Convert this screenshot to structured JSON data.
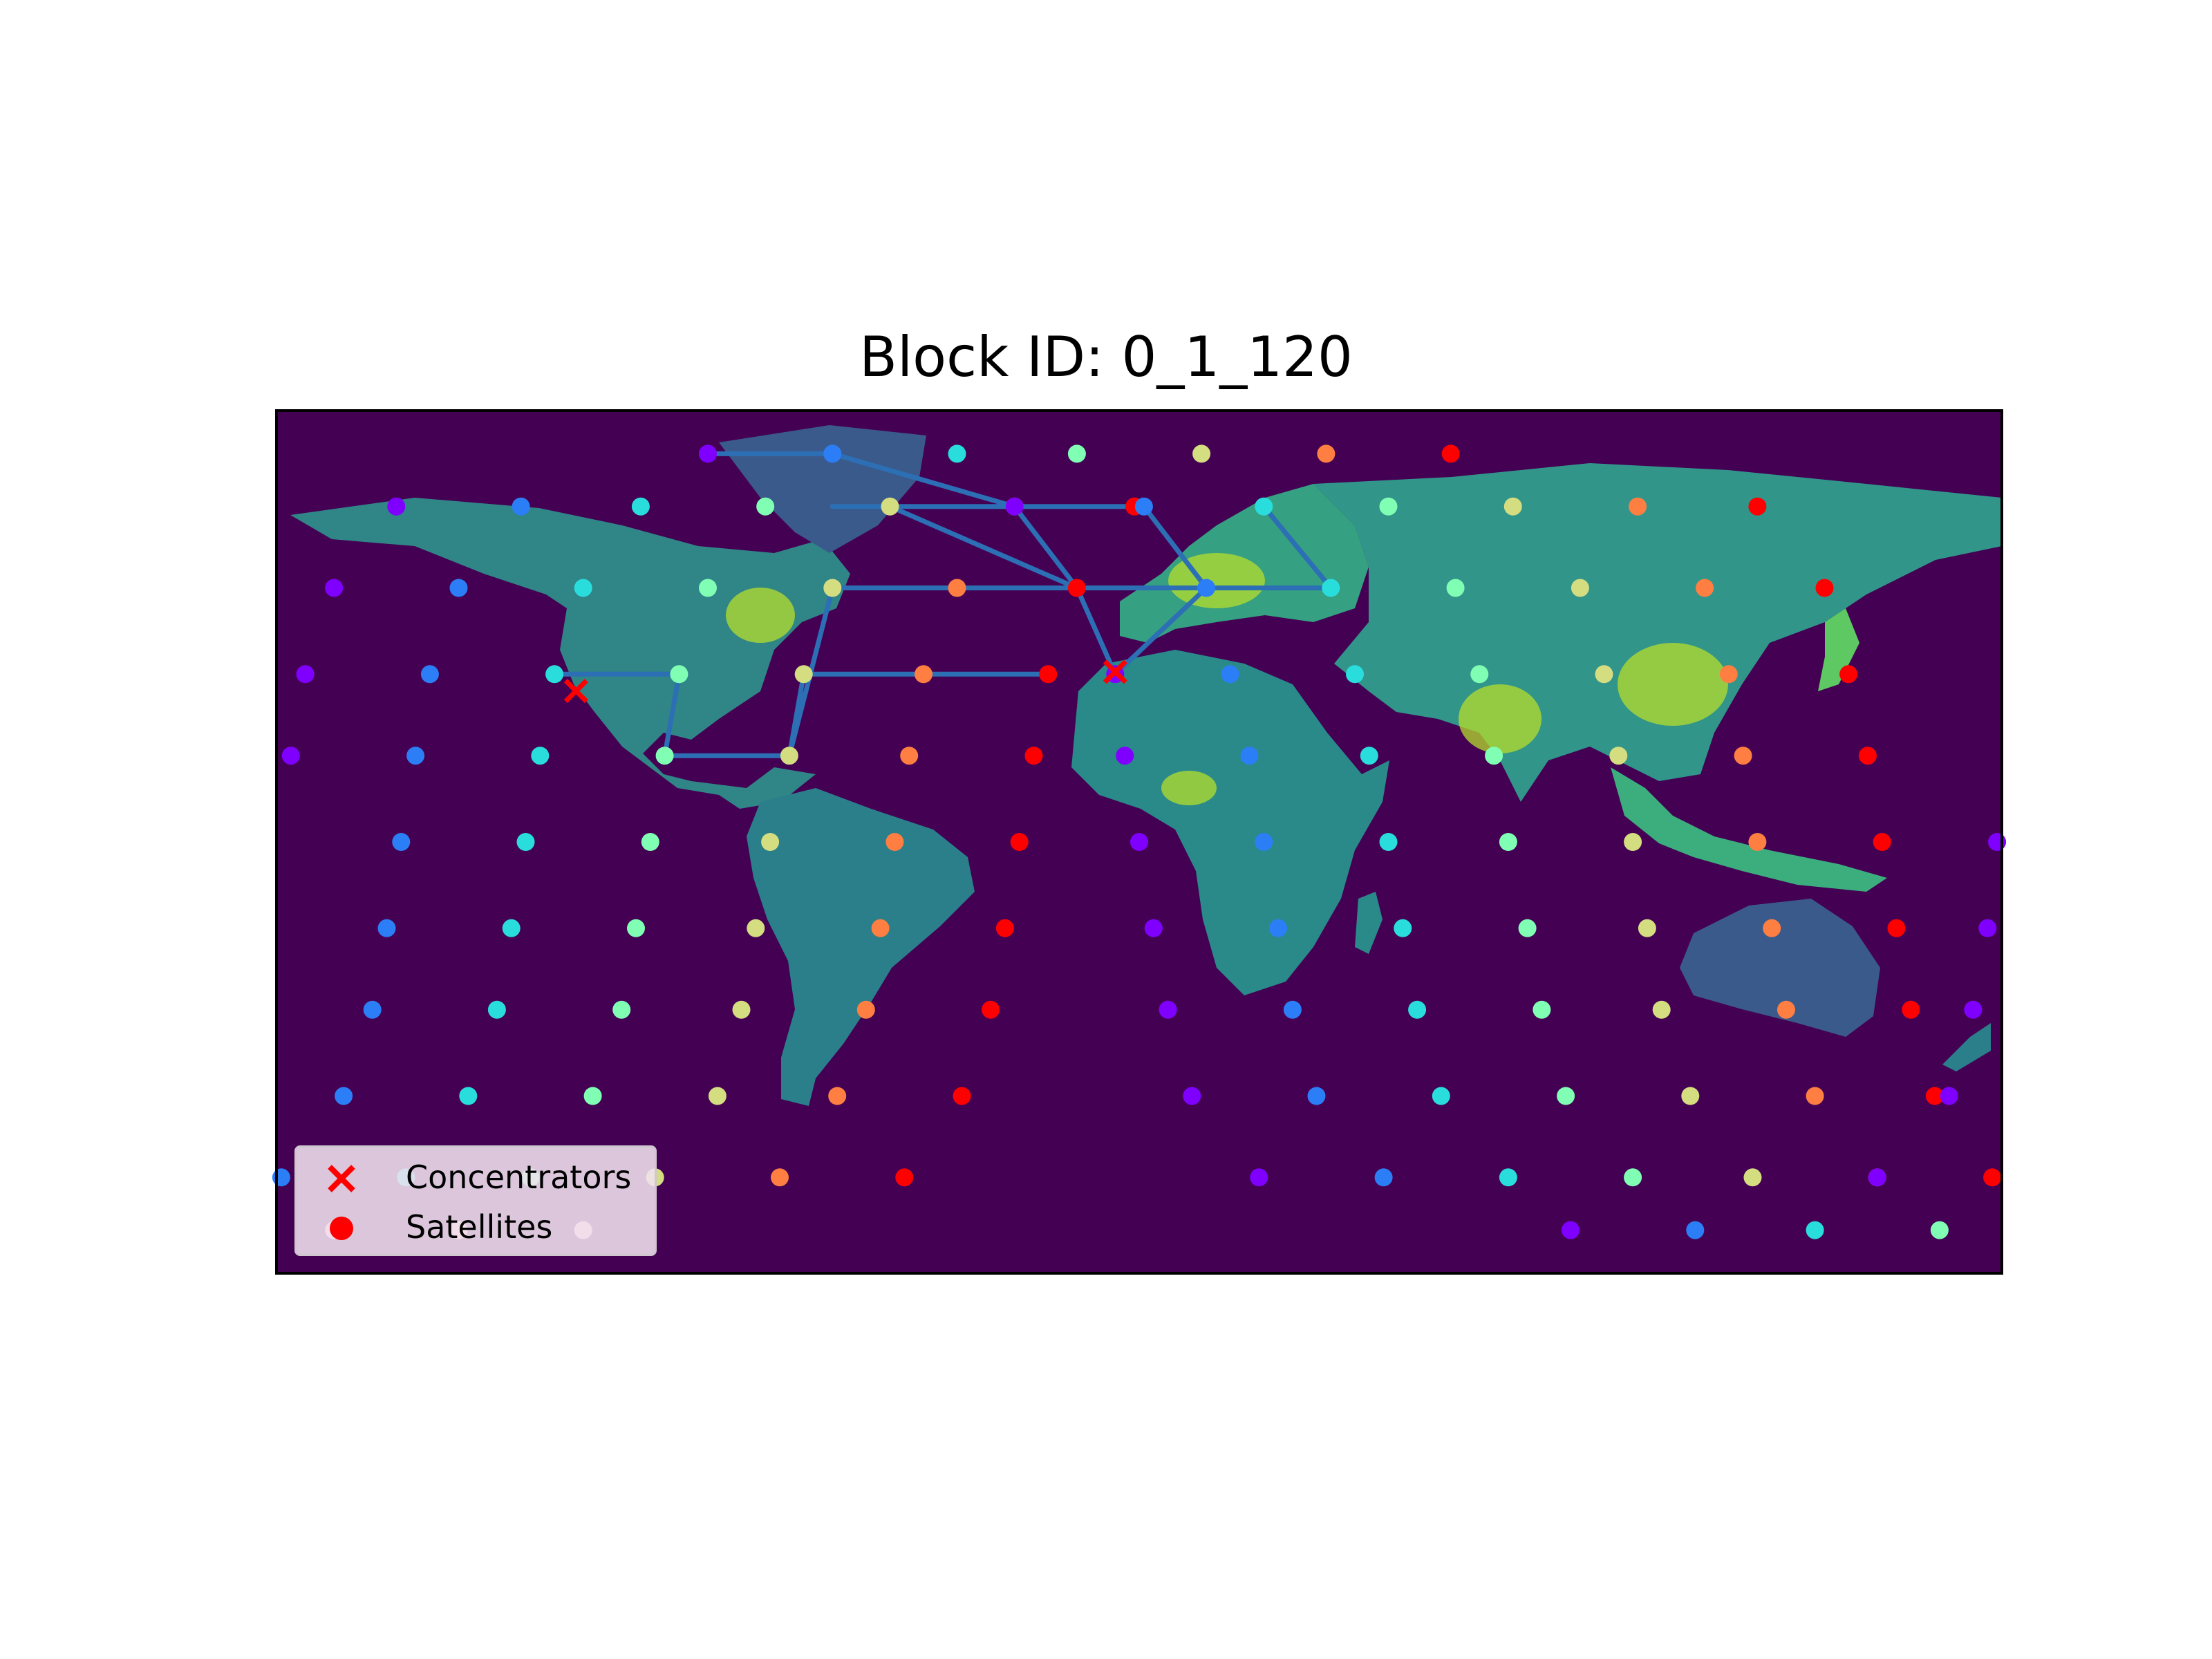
{
  "title": "Block ID: 0_1_120",
  "legend": {
    "concentrators_label": "Concentrators",
    "satellites_label": "Satellites",
    "concentrator_color": "#ff0000",
    "satellite_color": "#ff0000"
  },
  "colors": {
    "ocean": "#440154",
    "land_low": "#2a788e",
    "land_high": "#b5de2b",
    "route": "#2c6fb5",
    "frame": "#000000"
  },
  "chart_data": {
    "type": "scatter",
    "map": "world population density (equirectangular)",
    "xlim": [
      -180,
      180
    ],
    "ylim": [
      -90,
      90
    ],
    "grid": false,
    "legend_position": "lower-left",
    "series": [
      {
        "name": "Concentrators",
        "marker": "x",
        "color": "#ff0000",
        "points": [
          [
            -117.5,
            31.5
          ],
          [
            -5.0,
            35.5
          ]
        ]
      },
      {
        "name": "Satellites",
        "marker": "circle",
        "colormap": "rainbow"
      }
    ],
    "satellite_rows": [
      {
        "lat": 81,
        "points": [
          [
            -90,
            "#7f00ff"
          ],
          [
            -64,
            "#2c7ef7"
          ],
          [
            -38,
            "#2adddd"
          ],
          [
            -13,
            "#80ffb4"
          ],
          [
            13,
            "#d4dd80"
          ],
          [
            39,
            "#ff7e41"
          ],
          [
            65,
            "#ff0000"
          ]
        ]
      },
      {
        "lat": 70,
        "points": [
          [
            -155,
            "#7f00ff"
          ],
          [
            -129,
            "#2c7ef7"
          ],
          [
            -104,
            "#2adddd"
          ],
          [
            -78,
            "#80ffb4"
          ],
          [
            -52,
            "#d4dd80"
          ],
          [
            -26,
            "#ff7e41"
          ],
          [
            -1,
            "#ff0000"
          ],
          [
            -26,
            "#7f00ff"
          ],
          [
            1,
            "#2c7ef7"
          ],
          [
            26,
            "#2adddd"
          ],
          [
            52,
            "#80ffb4"
          ],
          [
            78,
            "#d4dd80"
          ],
          [
            104,
            "#ff7e41"
          ],
          [
            129,
            "#ff0000"
          ]
        ]
      },
      {
        "lat": 53,
        "points": [
          [
            -168,
            "#7f00ff"
          ],
          [
            -142,
            "#2c7ef7"
          ],
          [
            -116,
            "#2adddd"
          ],
          [
            -90,
            "#80ffb4"
          ],
          [
            -64,
            "#d4dd80"
          ],
          [
            -38,
            "#ff7e41"
          ],
          [
            -13,
            "#ff0000"
          ],
          [
            14,
            "#2c7ef7"
          ],
          [
            40,
            "#2adddd"
          ],
          [
            66,
            "#80ffb4"
          ],
          [
            92,
            "#d4dd80"
          ],
          [
            118,
            "#ff7e41"
          ],
          [
            143,
            "#ff0000"
          ]
        ]
      },
      {
        "lat": 35,
        "points": [
          [
            -174,
            "#7f00ff"
          ],
          [
            -148,
            "#2c7ef7"
          ],
          [
            -122,
            "#2adddd"
          ],
          [
            -96,
            "#80ffb4"
          ],
          [
            -70,
            "#d4dd80"
          ],
          [
            -45,
            "#ff7e41"
          ],
          [
            -19,
            "#ff0000"
          ],
          [
            -5,
            "#7f00ff"
          ],
          [
            19,
            "#2c7ef7"
          ],
          [
            45,
            "#2adddd"
          ],
          [
            71,
            "#80ffb4"
          ],
          [
            97,
            "#d4dd80"
          ],
          [
            123,
            "#ff7e41"
          ],
          [
            148,
            "#ff0000"
          ]
        ]
      },
      {
        "lat": 18,
        "points": [
          [
            -177,
            "#7f00ff"
          ],
          [
            -151,
            "#2c7ef7"
          ],
          [
            -125,
            "#2adddd"
          ],
          [
            -99,
            "#80ffb4"
          ],
          [
            -73,
            "#d4dd80"
          ],
          [
            -48,
            "#ff7e41"
          ],
          [
            -22,
            "#ff0000"
          ],
          [
            -3,
            "#7f00ff"
          ],
          [
            23,
            "#2c7ef7"
          ],
          [
            48,
            "#2adddd"
          ],
          [
            74,
            "#80ffb4"
          ],
          [
            100,
            "#d4dd80"
          ],
          [
            126,
            "#ff7e41"
          ],
          [
            152,
            "#ff0000"
          ]
        ]
      },
      {
        "lat": 0,
        "points": [
          [
            -154,
            "#2c7ef7"
          ],
          [
            -128,
            "#2adddd"
          ],
          [
            -102,
            "#80ffb4"
          ],
          [
            -77,
            "#d4dd80"
          ],
          [
            -51,
            "#ff7e41"
          ],
          [
            -25,
            "#ff0000"
          ],
          [
            0,
            "#7f00ff"
          ],
          [
            26,
            "#2c7ef7"
          ],
          [
            52,
            "#2adddd"
          ],
          [
            77,
            "#80ffb4"
          ],
          [
            103,
            "#d4dd80"
          ],
          [
            129,
            "#ff7e41"
          ],
          [
            155,
            "#ff0000"
          ],
          [
            179,
            "#7f00ff"
          ]
        ]
      },
      {
        "lat": -18,
        "points": [
          [
            -157,
            "#2c7ef7"
          ],
          [
            -131,
            "#2adddd"
          ],
          [
            -105,
            "#80ffb4"
          ],
          [
            -80,
            "#d4dd80"
          ],
          [
            -54,
            "#ff7e41"
          ],
          [
            -28,
            "#ff0000"
          ],
          [
            3,
            "#7f00ff"
          ],
          [
            29,
            "#2c7ef7"
          ],
          [
            55,
            "#2adddd"
          ],
          [
            81,
            "#80ffb4"
          ],
          [
            106,
            "#d4dd80"
          ],
          [
            132,
            "#ff7e41"
          ],
          [
            158,
            "#ff0000"
          ],
          [
            177,
            "#7f00ff"
          ]
        ]
      },
      {
        "lat": -35,
        "points": [
          [
            -160,
            "#2c7ef7"
          ],
          [
            -134,
            "#2adddd"
          ],
          [
            -108,
            "#80ffb4"
          ],
          [
            -83,
            "#d4dd80"
          ],
          [
            -57,
            "#ff7e41"
          ],
          [
            -31,
            "#ff0000"
          ],
          [
            6,
            "#7f00ff"
          ],
          [
            32,
            "#2c7ef7"
          ],
          [
            58,
            "#2adddd"
          ],
          [
            84,
            "#80ffb4"
          ],
          [
            109,
            "#d4dd80"
          ],
          [
            135,
            "#ff7e41"
          ],
          [
            161,
            "#ff0000"
          ],
          [
            174,
            "#7f00ff"
          ]
        ]
      },
      {
        "lat": -53,
        "points": [
          [
            -166,
            "#2c7ef7"
          ],
          [
            -140,
            "#2adddd"
          ],
          [
            -114,
            "#80ffb4"
          ],
          [
            -88,
            "#d4dd80"
          ],
          [
            -63,
            "#ff7e41"
          ],
          [
            -37,
            "#ff0000"
          ],
          [
            11,
            "#7f00ff"
          ],
          [
            37,
            "#2c7ef7"
          ],
          [
            63,
            "#2adddd"
          ],
          [
            89,
            "#80ffb4"
          ],
          [
            115,
            "#d4dd80"
          ],
          [
            141,
            "#ff7e41"
          ],
          [
            166,
            "#ff0000"
          ],
          [
            169,
            "#7f00ff"
          ]
        ]
      },
      {
        "lat": -70,
        "points": [
          [
            -179,
            "#2c7ef7"
          ],
          [
            -153,
            "#2adddd"
          ],
          [
            -127,
            "#80ffb4"
          ],
          [
            -101,
            "#d4dd80"
          ],
          [
            -75,
            "#ff7e41"
          ],
          [
            -49,
            "#ff0000"
          ],
          [
            25,
            "#7f00ff"
          ],
          [
            51,
            "#2c7ef7"
          ],
          [
            77,
            "#2adddd"
          ],
          [
            103,
            "#80ffb4"
          ],
          [
            128,
            "#d4dd80"
          ],
          [
            154,
            "#ff7e41"
          ],
          [
            178,
            "#ff0000"
          ],
          [
            154,
            "#7f00ff"
          ]
        ]
      },
      {
        "lat": -81,
        "points": [
          [
            -168,
            "#ffc0cb"
          ],
          [
            -142,
            "#ffc0cb"
          ],
          [
            -116,
            "#ffc0cb"
          ],
          [
            90,
            "#7f00ff"
          ],
          [
            116,
            "#2c7ef7"
          ],
          [
            141,
            "#2adddd"
          ],
          [
            167,
            "#80ffb4"
          ]
        ]
      }
    ],
    "route": [
      [
        -90,
        81
      ],
      [
        -64,
        81
      ],
      [
        -26,
        70
      ],
      [
        1,
        70
      ],
      [
        14,
        53
      ],
      [
        -5,
        35
      ],
      [
        -13,
        53
      ],
      [
        -26,
        70
      ],
      [
        -52,
        70
      ],
      [
        -64,
        70
      ],
      [
        -52,
        70
      ],
      [
        -13,
        53
      ],
      [
        40,
        53
      ],
      [
        26,
        70
      ],
      [
        40,
        53
      ],
      [
        -64,
        53
      ],
      [
        -73,
        18
      ],
      [
        -99,
        18
      ],
      [
        -96,
        35
      ],
      [
        -122,
        35
      ],
      [
        -96,
        35
      ],
      [
        -99,
        18
      ],
      [
        -73,
        18
      ],
      [
        -70,
        35
      ],
      [
        -19,
        35
      ]
    ]
  }
}
